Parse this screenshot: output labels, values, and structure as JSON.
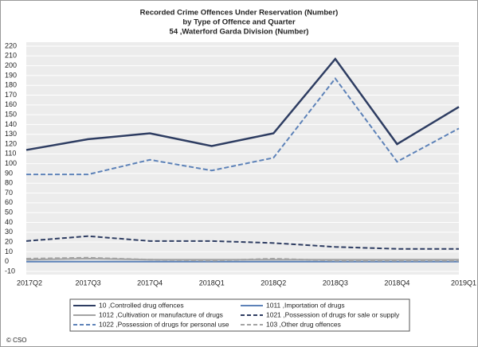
{
  "chart_data": {
    "type": "line",
    "title": [
      "Recorded Crime Offences Under Reservation (Number)",
      "by Type of Offence and Quarter",
      "54 ,Waterford  Garda Division (Number)"
    ],
    "categories": [
      "2017Q2",
      "2017Q3",
      "2017Q4",
      "2018Q1",
      "2018Q2",
      "2018Q3",
      "2018Q4",
      "2019Q1"
    ],
    "series": [
      {
        "name": "10 ,Controlled drug offences",
        "color": "#2e3d62",
        "line_style": "solid",
        "values": [
          114,
          125,
          131,
          118,
          131,
          207,
          120,
          158
        ]
      },
      {
        "name": "1011 ,Importation of drugs",
        "color": "#5d82b8",
        "line_style": "solid",
        "values": [
          0,
          0,
          0,
          0,
          0,
          0,
          0,
          0
        ]
      },
      {
        "name": "1012 ,Cultivation or manufacture of drugs",
        "color": "#a3a3a3",
        "line_style": "solid",
        "values": [
          2,
          3,
          2,
          2,
          2,
          2,
          2,
          2
        ]
      },
      {
        "name": "1021 ,Possession of drugs for sale or supply",
        "color": "#2e3d62",
        "line_style": "dashed",
        "values": [
          21,
          26,
          21,
          21,
          19,
          15,
          13,
          13
        ]
      },
      {
        "name": "1022 ,Possession of drugs for personal use",
        "color": "#5d82b8",
        "line_style": "dashed",
        "values": [
          89,
          89,
          104,
          93,
          106,
          187,
          102,
          136
        ]
      },
      {
        "name": "103 ,Other drug offences",
        "color": "#a3a3a3",
        "line_style": "dashed",
        "values": [
          3,
          4,
          2,
          1,
          3,
          1,
          1,
          1
        ]
      }
    ],
    "ylim": [
      -10,
      220
    ],
    "yticks": [
      -10,
      0,
      10,
      20,
      30,
      40,
      50,
      60,
      70,
      80,
      90,
      100,
      110,
      120,
      130,
      140,
      150,
      160,
      170,
      180,
      190,
      200,
      210,
      220
    ],
    "grid": true,
    "source": "© CSO"
  }
}
